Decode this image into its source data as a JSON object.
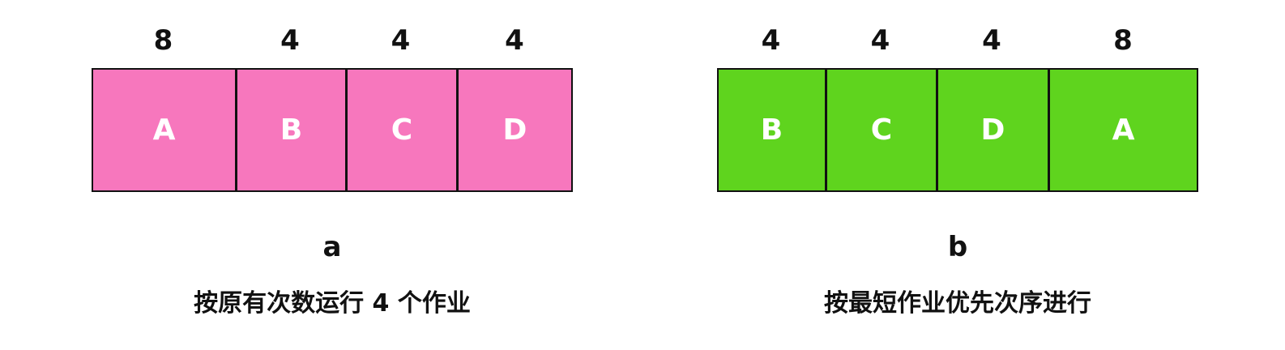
{
  "panels": [
    {
      "id": "a",
      "label": "a",
      "caption": "按原有次数运行 4 个作业",
      "color": "#f777bd",
      "jobs": [
        {
          "name": "A",
          "duration": "8"
        },
        {
          "name": "B",
          "duration": "4"
        },
        {
          "name": "C",
          "duration": "4"
        },
        {
          "name": "D",
          "duration": "4"
        }
      ]
    },
    {
      "id": "b",
      "label": "b",
      "caption": "按最短作业优先次序进行",
      "color": "#5fd41e",
      "jobs": [
        {
          "name": "B",
          "duration": "4"
        },
        {
          "name": "C",
          "duration": "4"
        },
        {
          "name": "D",
          "duration": "4"
        },
        {
          "name": "A",
          "duration": "8"
        }
      ]
    }
  ]
}
